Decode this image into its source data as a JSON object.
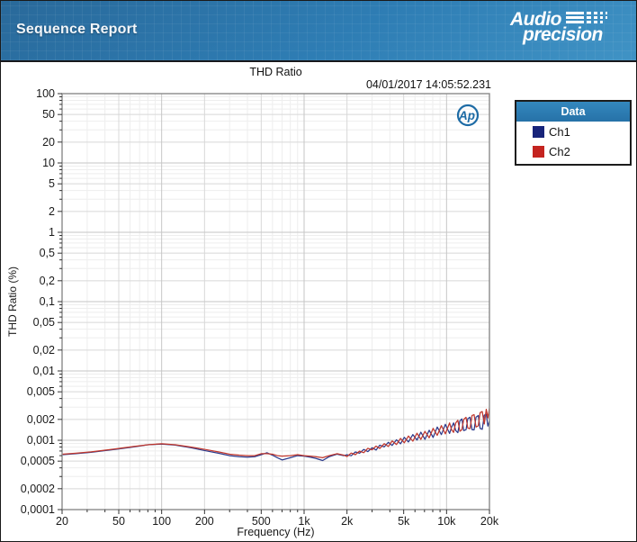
{
  "header": {
    "title": "Sequence Report",
    "brand": {
      "line1": "Audio",
      "line2": "precision"
    }
  },
  "chart": {
    "title": "THD Ratio",
    "timestamp": "04/01/2017 14:05:52.231",
    "ap_badge": "Ap",
    "xlabel": "Frequency (Hz)",
    "ylabel": "THD Ratio (%)"
  },
  "legend": {
    "title": "Data",
    "items": [
      {
        "label": "Ch1",
        "color": "#18247a"
      },
      {
        "label": "Ch2",
        "color": "#c42420"
      }
    ]
  },
  "chart_data": {
    "type": "line",
    "title": "THD Ratio",
    "xlabel": "Frequency (Hz)",
    "ylabel": "THD Ratio (%)",
    "x_scale": "log",
    "y_scale": "log",
    "xlim": [
      20,
      20000
    ],
    "ylim": [
      0.0001,
      100
    ],
    "grid": true,
    "legend_position": "right-outside",
    "x_ticks": [
      {
        "v": 20,
        "label": "20"
      },
      {
        "v": 50,
        "label": "50"
      },
      {
        "v": 100,
        "label": "100"
      },
      {
        "v": 200,
        "label": "200"
      },
      {
        "v": 500,
        "label": "500"
      },
      {
        "v": 1000,
        "label": "1k"
      },
      {
        "v": 2000,
        "label": "2k"
      },
      {
        "v": 5000,
        "label": "5k"
      },
      {
        "v": 10000,
        "label": "10k"
      },
      {
        "v": 20000,
        "label": "20k"
      }
    ],
    "y_ticks": [
      {
        "v": 100,
        "label": "100"
      },
      {
        "v": 50,
        "label": "50"
      },
      {
        "v": 20,
        "label": "20"
      },
      {
        "v": 10,
        "label": "10"
      },
      {
        "v": 5,
        "label": "5"
      },
      {
        "v": 2,
        "label": "2"
      },
      {
        "v": 1,
        "label": "1"
      },
      {
        "v": 0.5,
        "label": "0,5"
      },
      {
        "v": 0.2,
        "label": "0,2"
      },
      {
        "v": 0.1,
        "label": "0,1"
      },
      {
        "v": 0.05,
        "label": "0,05"
      },
      {
        "v": 0.02,
        "label": "0,02"
      },
      {
        "v": 0.01,
        "label": "0,01"
      },
      {
        "v": 0.005,
        "label": "0,005"
      },
      {
        "v": 0.002,
        "label": "0,002"
      },
      {
        "v": 0.001,
        "label": "0,001"
      },
      {
        "v": 0.0005,
        "label": "0,0005"
      },
      {
        "v": 0.0002,
        "label": "0,0002"
      },
      {
        "v": 0.0001,
        "label": "0,0001"
      }
    ],
    "x": [
      20,
      25,
      32,
      40,
      50,
      63,
      80,
      100,
      125,
      160,
      200,
      250,
      300,
      350,
      400,
      450,
      500,
      550,
      600,
      650,
      700,
      800,
      900,
      1000,
      1100,
      1200,
      1350,
      1500,
      1700,
      1900,
      2000,
      2140,
      2290,
      2450,
      2620,
      2800,
      3000,
      3200,
      3400,
      3650,
      3900,
      4150,
      4450,
      4750,
      5050,
      5400,
      5800,
      6200,
      6600,
      7050,
      7550,
      8050,
      8600,
      9200,
      9800,
      10500,
      10850,
      11200,
      11600,
      12000,
      12400,
      12800,
      13200,
      13700,
      14100,
      14600,
      15100,
      15600,
      16100,
      16700,
      17200,
      17800,
      18400,
      19000,
      19500,
      20000
    ],
    "series": [
      {
        "name": "Ch1",
        "color": "#2b3a8c",
        "y": [
          0.00062,
          0.00064,
          0.00067,
          0.00071,
          0.00075,
          0.0008,
          0.00086,
          0.00088,
          0.00085,
          0.00078,
          0.00071,
          0.00065,
          0.0006,
          0.00058,
          0.00057,
          0.00058,
          0.00062,
          0.00066,
          0.00061,
          0.00056,
          0.00052,
          0.00056,
          0.0006,
          0.00059,
          0.00057,
          0.00055,
          0.00051,
          0.00058,
          0.00063,
          0.0006,
          0.000618,
          0.000598,
          0.000678,
          0.000651,
          0.000738,
          0.000686,
          0.00078,
          0.000723,
          0.000851,
          0.000802,
          0.000935,
          0.000842,
          0.001016,
          0.000889,
          0.001099,
          0.000943,
          0.001207,
          0.001006,
          0.001307,
          0.001032,
          0.001396,
          0.001097,
          0.001552,
          0.001208,
          0.001697,
          0.001255,
          0.00155,
          0.00178,
          0.00138,
          0.001286,
          0.0019,
          0.002033,
          0.00138,
          0.001418,
          0.00205,
          0.002149,
          0.00142,
          0.001411,
          0.00215,
          0.002275,
          0.00148,
          0.001438,
          0.0023,
          0.002381,
          0.0016,
          0.0019
        ]
      },
      {
        "name": "Ch2",
        "color": "#c1372c",
        "y": [
          0.00063,
          0.00065,
          0.00068,
          0.00072,
          0.00076,
          0.00081,
          0.00086,
          0.00089,
          0.00086,
          0.0008,
          0.00074,
          0.00068,
          0.00063,
          0.00061,
          0.0006,
          0.0006,
          0.00064,
          0.00064,
          0.00063,
          0.0006,
          0.00059,
          0.0006,
          0.00062,
          0.0006,
          0.00059,
          0.00058,
          0.00056,
          0.0006,
          0.00064,
          0.00061,
          0.000582,
          0.000654,
          0.00062,
          0.000698,
          0.000661,
          0.000765,
          0.000728,
          0.000824,
          0.000763,
          0.000893,
          0.000814,
          0.000977,
          0.000867,
          0.001063,
          0.000919,
          0.00115,
          0.00097,
          0.001263,
          0.00103,
          0.001344,
          0.001084,
          0.001485,
          0.001177,
          0.001625,
          0.001237,
          0.001778,
          0.00142,
          0.0013,
          0.00178,
          0.001944,
          0.00135,
          0.001416,
          0.002,
          0.002144,
          0.0015,
          0.001469,
          0.00228,
          0.00234,
          0.00155,
          0.00162,
          0.0025,
          0.002596,
          0.00172,
          0.002795,
          0.0021,
          0.0029
        ]
      }
    ]
  }
}
